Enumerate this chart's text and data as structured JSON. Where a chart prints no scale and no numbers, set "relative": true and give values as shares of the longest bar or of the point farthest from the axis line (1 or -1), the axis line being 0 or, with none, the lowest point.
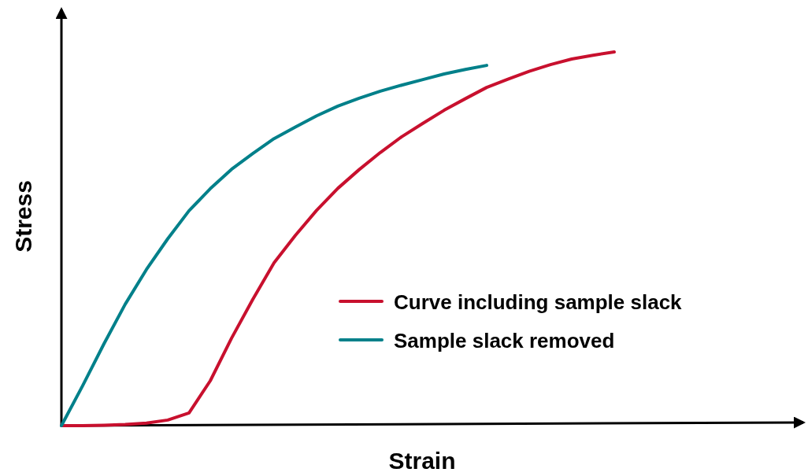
{
  "chart_data": {
    "type": "line",
    "relative": true,
    "xlabel": "Strain",
    "ylabel": "Stress",
    "legend": "right",
    "marker": "none",
    "line_style": "solid",
    "categories": [
      null,
      null,
      null,
      null,
      null,
      null,
      null,
      null,
      null,
      null,
      null,
      null,
      null,
      null,
      null,
      null,
      null,
      null,
      null,
      null,
      null,
      null,
      null,
      null,
      null,
      null,
      null
    ],
    "series": [
      {
        "name": "Curve including sample slack",
        "color": "#c8102e",
        "values": [
          0,
          0,
          0.001,
          0.003,
          0.007,
          0.015,
          0.034,
          0.12,
          0.234,
          0.338,
          0.436,
          0.509,
          0.576,
          0.635,
          0.685,
          0.731,
          0.773,
          0.809,
          0.844,
          0.875,
          0.905,
          0.927,
          0.948,
          0.966,
          0.981,
          0.991,
          1
        ]
      },
      {
        "name": "Sample slack removed",
        "color": "#00808a",
        "values": [
          0,
          0.107,
          0.219,
          0.325,
          0.418,
          0.5,
          0.575,
          0.634,
          0.686,
          0.728,
          0.768,
          0.799,
          0.829,
          0.855,
          0.876,
          0.895,
          0.911,
          0.926,
          0.941,
          0.953,
          0.964,
          null,
          null,
          null,
          null,
          null,
          null
        ]
      }
    ]
  }
}
